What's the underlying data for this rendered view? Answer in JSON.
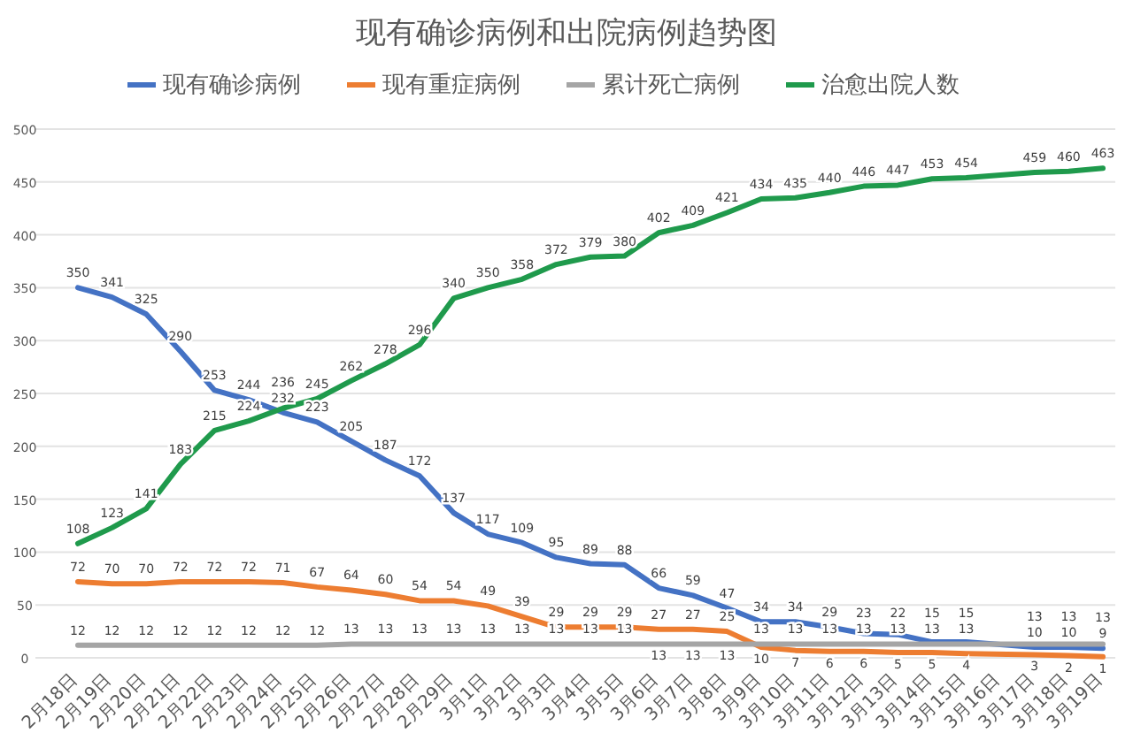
{
  "chart_data": {
    "type": "line",
    "title": "现有确诊病例和出院病例趋势图",
    "categories": [
      "2月18日",
      "2月19日",
      "2月20日",
      "2月21日",
      "2月22日",
      "2月23日",
      "2月24日",
      "2月25日",
      "2月26日",
      "2月27日",
      "2月28日",
      "2月29日",
      "3月1日",
      "3月2日",
      "3月3日",
      "3月4日",
      "3月5日",
      "3月6日",
      "3月7日",
      "3月8日",
      "3月9日",
      "3月10日",
      "3月11日",
      "3月12日",
      "3月13日",
      "3月14日",
      "3月15日",
      "3月16日",
      "3月17日",
      "3月18日",
      "3月19日"
    ],
    "series": [
      {
        "name": "现有确诊病例",
        "color": "#4472c4",
        "values": [
          350,
          341,
          325,
          290,
          253,
          244,
          232,
          223,
          205,
          187,
          172,
          137,
          117,
          109,
          95,
          89,
          88,
          66,
          59,
          47,
          34,
          34,
          29,
          23,
          22,
          15,
          15,
          null,
          10,
          10,
          9
        ]
      },
      {
        "name": "现有重症病例",
        "color": "#ed7d31",
        "values": [
          72,
          70,
          70,
          72,
          72,
          72,
          71,
          67,
          64,
          60,
          54,
          54,
          49,
          39,
          29,
          29,
          29,
          27,
          27,
          25,
          10,
          7,
          6,
          6,
          5,
          5,
          4,
          null,
          3,
          2,
          1
        ]
      },
      {
        "name": "累计死亡病例",
        "color": "#a5a5a5",
        "values": [
          12,
          12,
          12,
          12,
          12,
          12,
          12,
          12,
          13,
          13,
          13,
          13,
          13,
          13,
          13,
          13,
          13,
          13,
          13,
          13,
          13,
          13,
          13,
          13,
          13,
          13,
          13,
          null,
          13,
          13,
          13
        ]
      },
      {
        "name": "治愈出院人数",
        "color": "#1f9a4c",
        "values": [
          108,
          123,
          141,
          183,
          215,
          224,
          236,
          245,
          262,
          278,
          296,
          340,
          350,
          358,
          372,
          379,
          380,
          402,
          409,
          421,
          434,
          435,
          440,
          446,
          447,
          453,
          454,
          null,
          459,
          460,
          463
        ]
      }
    ],
    "ylim": [
      0,
      500
    ],
    "yticks": [
      0,
      50,
      100,
      150,
      200,
      250,
      300,
      350,
      400,
      450,
      500
    ],
    "grid": "y",
    "legend": "top",
    "data_labels": true,
    "marker": "none",
    "line_style": "solid"
  }
}
